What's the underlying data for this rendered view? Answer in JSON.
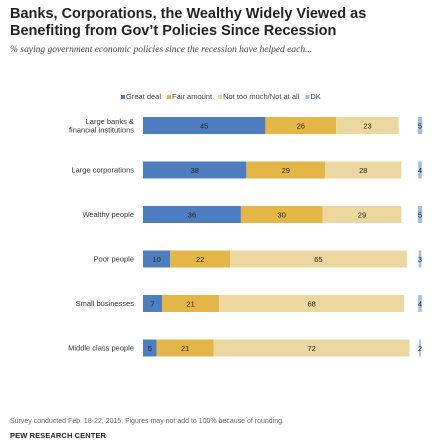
{
  "title": "Banks, Corporations, the Wealthy Widely Viewed as Benefiting from Gov’t Policies Since Recession",
  "subtitle": "% saying government economic policies since the recession have helped each...",
  "footer": {
    "note": "Survey conducted Feb. 18-22, 2015. Figures may not add to 100% because of rounding.",
    "source": "PEW RESEARCH CENTER"
  },
  "colors": {
    "great_deal": "#4f7ec0",
    "fair_amount": "#e4b648",
    "not_too_much": "#edd7a1",
    "dk": "#a2bfe2"
  },
  "chart_data": {
    "type": "bar",
    "orientation": "horizontal",
    "stacked": true,
    "legend_position": "top",
    "categories": [
      [
        "Large banks &",
        "financial institutions"
      ],
      [
        "Large corporations"
      ],
      [
        "Wealthy people"
      ],
      [
        "Poor people"
      ],
      [
        "Small businesses"
      ],
      [
        "Middle class people"
      ]
    ],
    "series": [
      {
        "name": "Great deal",
        "values": [
          45,
          38,
          36,
          10,
          7,
          5
        ]
      },
      {
        "name": "Fair amount",
        "values": [
          26,
          29,
          30,
          22,
          21,
          21
        ]
      },
      {
        "name": "Not too much/Not at all",
        "values": [
          23,
          28,
          29,
          65,
          68,
          72
        ]
      },
      {
        "name": "DK",
        "values": [
          5,
          4,
          5,
          3,
          4,
          2
        ]
      }
    ]
  }
}
